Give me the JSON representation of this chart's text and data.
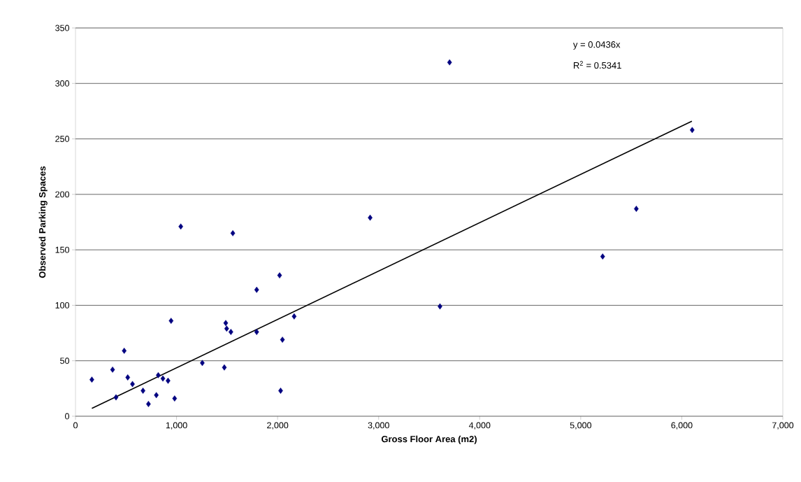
{
  "chart_data": {
    "type": "scatter",
    "xlabel": "Gross Floor Area (m2)",
    "ylabel": "Observed Parking Spaces",
    "annotations": [
      "y = 0.0436x",
      "R$^{2}$ = 0.5341"
    ],
    "xlim": [
      0,
      7000
    ],
    "ylim": [
      0,
      350
    ],
    "xticks": [
      0,
      {
        "value": 1000,
        "label": "1,000"
      },
      {
        "value": 2000,
        "label": "2,000"
      },
      {
        "value": 3000,
        "label": "3,000"
      },
      {
        "value": 4000,
        "label": "4,000"
      },
      {
        "value": 5000,
        "label": "5,000"
      },
      {
        "value": 6000,
        "label": "6,000"
      },
      {
        "value": 7000,
        "label": "7,000"
      }
    ],
    "yticks": [
      0,
      50,
      100,
      150,
      200,
      250,
      300,
      350
    ],
    "grid": "y",
    "legend": false,
    "series": [
      {
        "color": "#000080",
        "marker": "diamond",
        "x": [
          162,
          367,
          401,
          482,
          517,
          564,
          668,
          722,
          800,
          819,
          865,
          916,
          946,
          981,
          1042,
          1255,
          1473,
          1487,
          1496,
          1538,
          1557,
          1793,
          1793,
          2020,
          2030,
          2048,
          2164,
          2916,
          3702,
          3607,
          5217,
          5550,
          6103
        ],
        "values": [
          33,
          42,
          17,
          59,
          35,
          29,
          23,
          11,
          19,
          37,
          34,
          32,
          86,
          16,
          171,
          48,
          44,
          84,
          79,
          76,
          165,
          114,
          76,
          127,
          23,
          69,
          90,
          179,
          319,
          99,
          144,
          187,
          258
        ]
      },
      {
        "type": "line",
        "color": "#000000",
        "marker": "none",
        "line_style": "solid",
        "x": [
          162,
          6100
        ],
        "values": [
          7.1,
          266
        ]
      }
    ]
  }
}
